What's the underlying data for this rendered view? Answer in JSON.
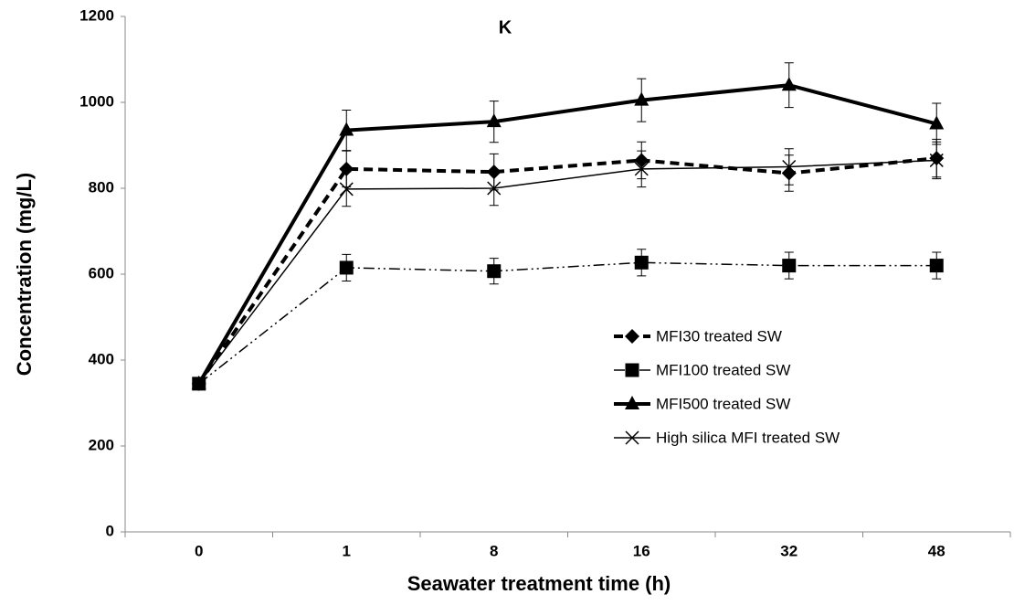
{
  "chart_data": {
    "type": "line",
    "title": "K",
    "x_label": "Seawater treatment time (h)",
    "y_label": "Concentration (mg/L)",
    "categories": [
      "0",
      "1",
      "8",
      "16",
      "32",
      "48"
    ],
    "ylim": [
      0,
      1200
    ],
    "yticks": [
      0,
      200,
      400,
      600,
      800,
      1000,
      1200
    ],
    "grid": false,
    "series": [
      {
        "name": "MFI30 treated SW",
        "color": "#000000",
        "dash": "10,6",
        "width": 4,
        "marker": "diamond",
        "values": [
          345,
          845,
          838,
          865,
          835,
          870
        ],
        "errors": [
          0,
          42,
          42,
          43,
          42,
          44
        ]
      },
      {
        "name": "MFI100 treated SW",
        "color": "#000000",
        "dash": "12,4,2,4,2,4",
        "width": 1.5,
        "marker": "square",
        "values": [
          345,
          615,
          607,
          627,
          620,
          620
        ],
        "errors": [
          0,
          31,
          30,
          31,
          31,
          31
        ]
      },
      {
        "name": "MFI500 treated SW",
        "color": "#000000",
        "dash": "none",
        "width": 4,
        "marker": "triangle",
        "values": [
          345,
          935,
          955,
          1005,
          1040,
          950
        ],
        "errors": [
          0,
          47,
          48,
          50,
          52,
          48
        ]
      },
      {
        "name": "High silica MFI treated SW",
        "color": "#000000",
        "dash": "none",
        "width": 1.5,
        "marker": "x",
        "values": [
          345,
          798,
          800,
          845,
          850,
          865
        ],
        "errors": [
          0,
          40,
          40,
          42,
          42,
          43
        ]
      }
    ]
  }
}
